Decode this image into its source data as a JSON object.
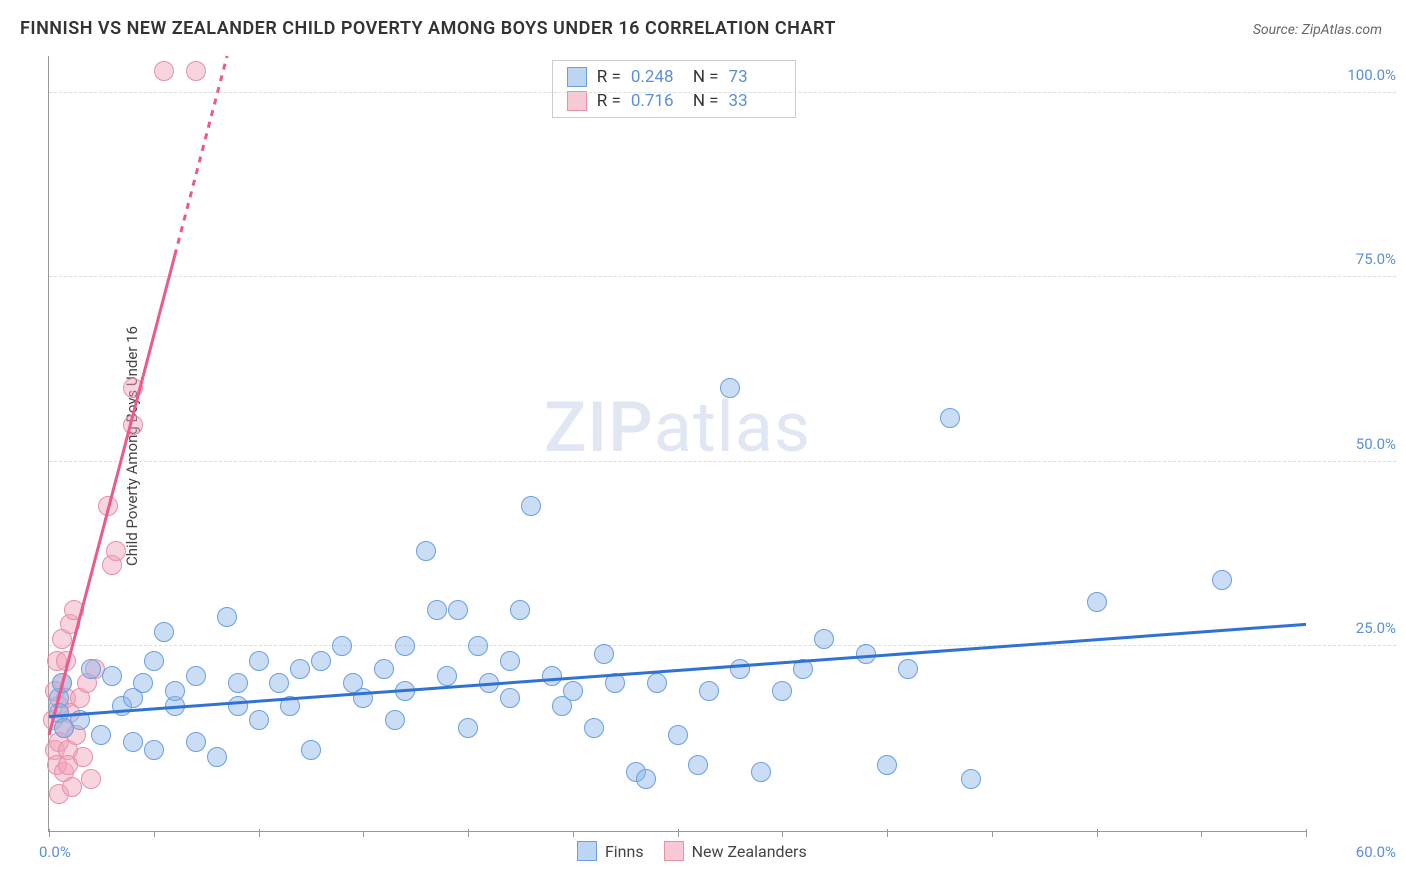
{
  "header": {
    "title": "FINNISH VS NEW ZEALANDER CHILD POVERTY AMONG BOYS UNDER 16 CORRELATION CHART",
    "source_prefix": "Source: ",
    "source_name": "ZipAtlas.com"
  },
  "axes": {
    "y_label": "Child Poverty Among Boys Under 16",
    "x_min_label": "0.0%",
    "x_max_label": "60.0%",
    "x_min": 0,
    "x_max": 60,
    "y_min": 0,
    "y_max": 105,
    "y_ticks": [
      {
        "v": 25,
        "label": "25.0%"
      },
      {
        "v": 50,
        "label": "50.0%"
      },
      {
        "v": 75,
        "label": "75.0%"
      },
      {
        "v": 100,
        "label": "100.0%"
      }
    ],
    "x_major_ticks": [
      0,
      10,
      20,
      30,
      40,
      50,
      60
    ],
    "x_minor_ticks": [
      5,
      15,
      25,
      35,
      45,
      55
    ]
  },
  "watermark": {
    "zip": "ZIP",
    "atlas": "atlas"
  },
  "stats": [
    {
      "swatch_fill": "#bcd5f3",
      "swatch_border": "#6aa0e0",
      "r_label": "R =",
      "r": "0.248",
      "n_label": "N =",
      "n": "73"
    },
    {
      "swatch_fill": "#f7c9d5",
      "swatch_border": "#e790aa",
      "r_label": "R =",
      "r": "0.716",
      "n_label": "N =",
      "n": "33"
    }
  ],
  "series_legend": [
    {
      "swatch_fill": "#bcd5f3",
      "swatch_border": "#6aa0e0",
      "label": "Finns"
    },
    {
      "swatch_fill": "#f7c9d5",
      "swatch_border": "#e790aa",
      "label": "New Zealanders"
    }
  ],
  "series": {
    "finns": {
      "color_fill": "rgba(140,180,230,0.45)",
      "color_stroke": "#6aa0e0",
      "marker_size": 20,
      "trend": {
        "x1": 0,
        "y1": 15.5,
        "x2": 60,
        "y2": 28,
        "color": "#2f72d4",
        "width": 3
      },
      "points": [
        [
          0.5,
          18
        ],
        [
          0.5,
          16
        ],
        [
          0.7,
          14
        ],
        [
          0.6,
          20
        ],
        [
          1.5,
          15
        ],
        [
          2,
          22
        ],
        [
          2.5,
          13
        ],
        [
          3,
          21
        ],
        [
          3.5,
          17
        ],
        [
          4,
          12
        ],
        [
          4,
          18
        ],
        [
          4.5,
          20
        ],
        [
          5,
          11
        ],
        [
          5,
          23
        ],
        [
          5.5,
          27
        ],
        [
          6,
          17
        ],
        [
          6,
          19
        ],
        [
          7,
          12
        ],
        [
          7,
          21
        ],
        [
          8,
          10
        ],
        [
          8.5,
          29
        ],
        [
          9,
          20
        ],
        [
          9,
          17
        ],
        [
          10,
          15
        ],
        [
          10,
          23
        ],
        [
          11,
          20
        ],
        [
          11.5,
          17
        ],
        [
          12,
          22
        ],
        [
          12.5,
          11
        ],
        [
          13,
          23
        ],
        [
          14,
          25
        ],
        [
          14.5,
          20
        ],
        [
          15,
          18
        ],
        [
          16,
          22
        ],
        [
          16.5,
          15
        ],
        [
          17,
          25
        ],
        [
          17,
          19
        ],
        [
          18,
          38
        ],
        [
          18.5,
          30
        ],
        [
          19,
          21
        ],
        [
          19.5,
          30
        ],
        [
          20,
          14
        ],
        [
          20.5,
          25
        ],
        [
          21,
          20
        ],
        [
          22,
          23
        ],
        [
          22,
          18
        ],
        [
          22.5,
          30
        ],
        [
          23,
          44
        ],
        [
          24,
          21
        ],
        [
          24.5,
          17
        ],
        [
          25,
          19
        ],
        [
          26,
          14
        ],
        [
          26.5,
          24
        ],
        [
          27,
          20
        ],
        [
          28,
          8
        ],
        [
          28.5,
          7
        ],
        [
          29,
          20
        ],
        [
          30,
          13
        ],
        [
          31,
          9
        ],
        [
          31.5,
          19
        ],
        [
          32.5,
          60
        ],
        [
          33,
          22
        ],
        [
          34,
          8
        ],
        [
          35,
          19
        ],
        [
          36,
          22
        ],
        [
          37,
          26
        ],
        [
          39,
          24
        ],
        [
          40,
          9
        ],
        [
          41,
          22
        ],
        [
          43,
          56
        ],
        [
          44,
          7
        ],
        [
          50,
          31
        ],
        [
          56,
          34
        ]
      ]
    },
    "nz": {
      "color_fill": "rgba(240,160,185,0.45)",
      "color_stroke": "#e790aa",
      "marker_size": 20,
      "trend": {
        "x1": 0,
        "y1": 13,
        "x2": 8.5,
        "y2": 105,
        "color": "#ea5a8a",
        "width": 3,
        "dash_after": 78
      },
      "points": [
        [
          0.2,
          15
        ],
        [
          0.3,
          11
        ],
        [
          0.3,
          19
        ],
        [
          0.4,
          9
        ],
        [
          0.4,
          23
        ],
        [
          0.5,
          5
        ],
        [
          0.5,
          12
        ],
        [
          0.5,
          17
        ],
        [
          0.6,
          20
        ],
        [
          0.6,
          26
        ],
        [
          0.7,
          14
        ],
        [
          0.7,
          8
        ],
        [
          0.8,
          18
        ],
        [
          0.8,
          23
        ],
        [
          0.9,
          11
        ],
        [
          0.9,
          9
        ],
        [
          1.0,
          16
        ],
        [
          1.0,
          28
        ],
        [
          1.1,
          6
        ],
        [
          1.2,
          30
        ],
        [
          1.3,
          13
        ],
        [
          1.5,
          18
        ],
        [
          1.6,
          10
        ],
        [
          1.8,
          20
        ],
        [
          2.0,
          7
        ],
        [
          2.2,
          22
        ],
        [
          2.8,
          44
        ],
        [
          3.0,
          36
        ],
        [
          3.2,
          38
        ],
        [
          4,
          55
        ],
        [
          4,
          60
        ],
        [
          5.5,
          103
        ],
        [
          7,
          103
        ]
      ]
    }
  }
}
